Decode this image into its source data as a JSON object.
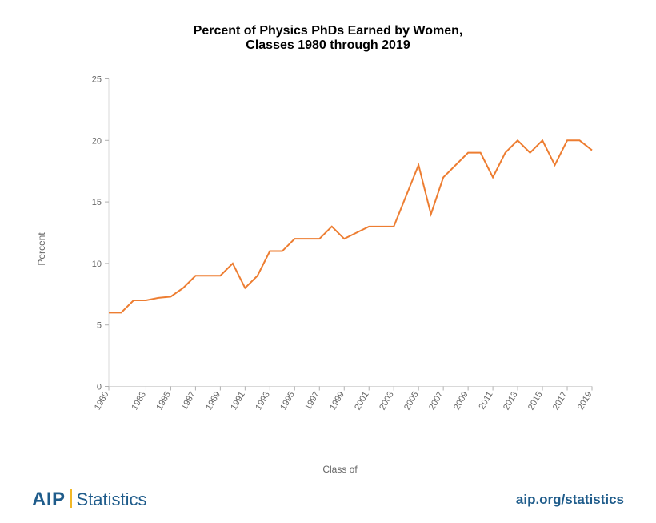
{
  "title": {
    "line1": "Percent of Physics PhDs Earned by Women,",
    "line2": "Classes 1980 through 2019",
    "fontsize": 16,
    "color": "#000000"
  },
  "chart": {
    "type": "line",
    "line_color": "#ed7d31",
    "line_width": 2,
    "background_color": "#ffffff",
    "axis_color": "#d9d9d9",
    "tick_color": "#b0b0b0",
    "tick_font_color": "#666666",
    "tick_fontsize": 11,
    "ylabel": "Percent",
    "xlabel": "Class of",
    "label_fontsize": 12,
    "label_color": "#666666",
    "ylim": [
      0,
      25
    ],
    "ytick_step": 5,
    "yticks": [
      0,
      5,
      10,
      15,
      20,
      25
    ],
    "xticks": [
      1980,
      1983,
      1985,
      1987,
      1989,
      1991,
      1993,
      1995,
      1997,
      1999,
      2001,
      2003,
      2005,
      2007,
      2009,
      2011,
      2013,
      2015,
      2017,
      2019
    ],
    "x": [
      1980,
      1981,
      1982,
      1983,
      1984,
      1985,
      1986,
      1987,
      1988,
      1989,
      1990,
      1991,
      1992,
      1993,
      1994,
      1995,
      1996,
      1997,
      1998,
      1999,
      2000,
      2001,
      2002,
      2003,
      2004,
      2005,
      2006,
      2007,
      2008,
      2009,
      2010,
      2011,
      2012,
      2013,
      2014,
      2015,
      2016,
      2017,
      2018,
      2019
    ],
    "y": [
      6,
      6,
      7,
      7,
      7.2,
      7.3,
      8,
      9,
      9,
      9,
      10,
      8,
      9,
      11,
      11,
      12,
      12,
      12,
      13,
      12,
      12.5,
      13,
      13,
      13,
      15.5,
      18,
      14,
      17,
      18,
      19,
      19,
      17,
      19,
      20,
      19,
      20,
      18,
      20,
      20,
      19.2
    ]
  },
  "footer": {
    "logo_aip": "AIP",
    "logo_stats": "Statistics",
    "logo_color": "#1f5c8b",
    "logo_accent": "#f2b827",
    "logo_fontsize": 24,
    "url": "aip.org/statistics",
    "url_color": "#1f5c8b",
    "url_fontsize": 17,
    "border_color": "#cccccc"
  }
}
